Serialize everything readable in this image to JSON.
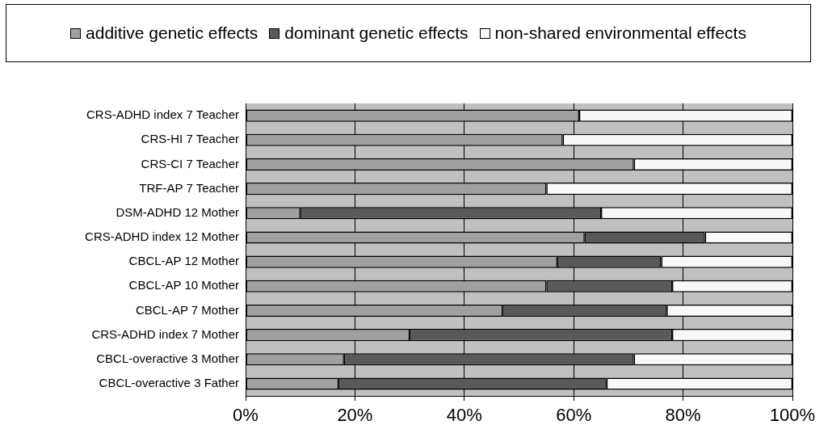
{
  "chart_data": {
    "type": "bar",
    "orientation": "horizontal",
    "stacked": true,
    "categories": [
      "CRS-ADHD index 7 Teacher",
      "CRS-HI 7 Teacher",
      "CRS-CI 7 Teacher",
      "TRF-AP 7 Teacher",
      "DSM-ADHD 12 Mother",
      "CRS-ADHD index 12 Mother",
      "CBCL-AP 12 Mother",
      "CBCL-AP 10 Mother",
      "CBCL-AP 7 Mother",
      "CRS-ADHD index 7 Mother",
      "CBCL-overactive 3 Mother",
      "CBCL-overactive 3 Father"
    ],
    "series": [
      {
        "name": "additive genetic effects",
        "color": "#a0a0a0",
        "values": [
          61,
          58,
          71,
          55,
          10,
          62,
          57,
          55,
          47,
          30,
          18,
          17
        ]
      },
      {
        "name": "dominant genetic effects",
        "color": "#595959",
        "values": [
          0,
          0,
          0,
          0,
          55,
          22,
          19,
          23,
          30,
          48,
          53,
          49
        ]
      },
      {
        "name": "non-shared environmental effects",
        "color": "#f8f8f8",
        "values": [
          39,
          42,
          29,
          45,
          35,
          16,
          24,
          22,
          23,
          22,
          29,
          34
        ]
      }
    ],
    "xlim": [
      0,
      100
    ],
    "xticks": [
      {
        "value": 0,
        "label": "0%"
      },
      {
        "value": 20,
        "label": "20%"
      },
      {
        "value": 40,
        "label": "40%"
      },
      {
        "value": 60,
        "label": "60%"
      },
      {
        "value": 80,
        "label": "80%"
      },
      {
        "value": 100,
        "label": "100%"
      }
    ],
    "grid": "x",
    "legend": "top"
  }
}
